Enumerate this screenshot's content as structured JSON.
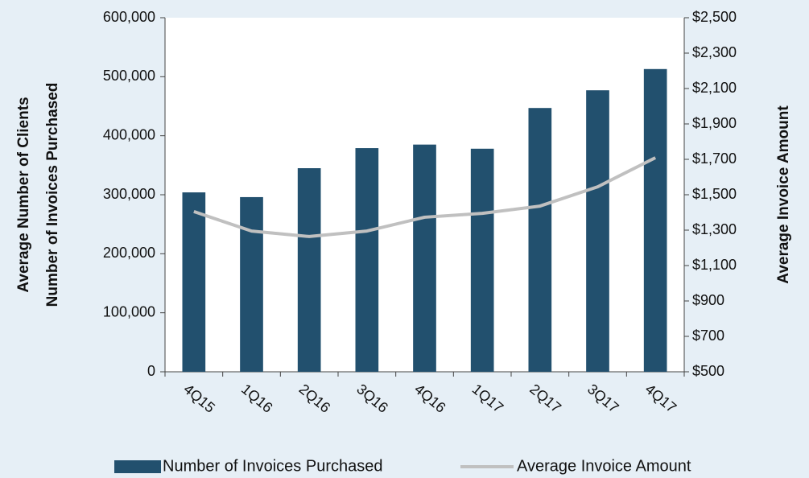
{
  "chart_data": {
    "type": "bar_line",
    "ylabel": [
      "Average Number of Clients",
      "Number of Invoices Purchased"
    ],
    "y2label": "Average Invoice Amount",
    "categories": [
      "4Q15",
      "1Q16",
      "2Q16",
      "3Q16",
      "4Q16",
      "1Q17",
      "2Q17",
      "3Q17",
      "4Q17"
    ],
    "series": [
      {
        "name": "Number of Invoices Purchased",
        "type": "bar",
        "color": "#22506e",
        "values": [
          304000,
          296000,
          345000,
          379000,
          385000,
          378000,
          447000,
          477000,
          513000
        ]
      },
      {
        "name": "Average Invoice Amount",
        "type": "line",
        "axis": "y2",
        "color": "#c0c0c0",
        "values": [
          1405,
          1295,
          1264,
          1295,
          1373,
          1395,
          1436,
          1545,
          1709
        ]
      }
    ],
    "ylim": [
      0,
      600000
    ],
    "yticks": [
      0,
      {
        "value": 100000,
        "label": "100,000"
      },
      {
        "value": 200000,
        "label": "200,000"
      },
      {
        "value": 300000,
        "label": "300,000"
      },
      {
        "value": 400000,
        "label": "400,000"
      },
      {
        "value": 500000,
        "label": "500,000"
      },
      {
        "value": 600000,
        "label": "600,000"
      }
    ],
    "y2lim": [
      500,
      2500
    ],
    "y2ticks": [
      {
        "value": 500,
        "label": "$500"
      },
      {
        "value": 700,
        "label": "$700"
      },
      {
        "value": 900,
        "label": "$900"
      },
      {
        "value": 1100,
        "label": "$1,100"
      },
      {
        "value": 1300,
        "label": "$1,300"
      },
      {
        "value": 1500,
        "label": "$1,500"
      },
      {
        "value": 1700,
        "label": "$1,700"
      },
      {
        "value": 1900,
        "label": "$1,900"
      },
      {
        "value": 2100,
        "label": "$2,100"
      },
      {
        "value": 2300,
        "label": "$2,300"
      },
      {
        "value": 2500,
        "label": "$2,500"
      }
    ],
    "legend": "bottom"
  }
}
